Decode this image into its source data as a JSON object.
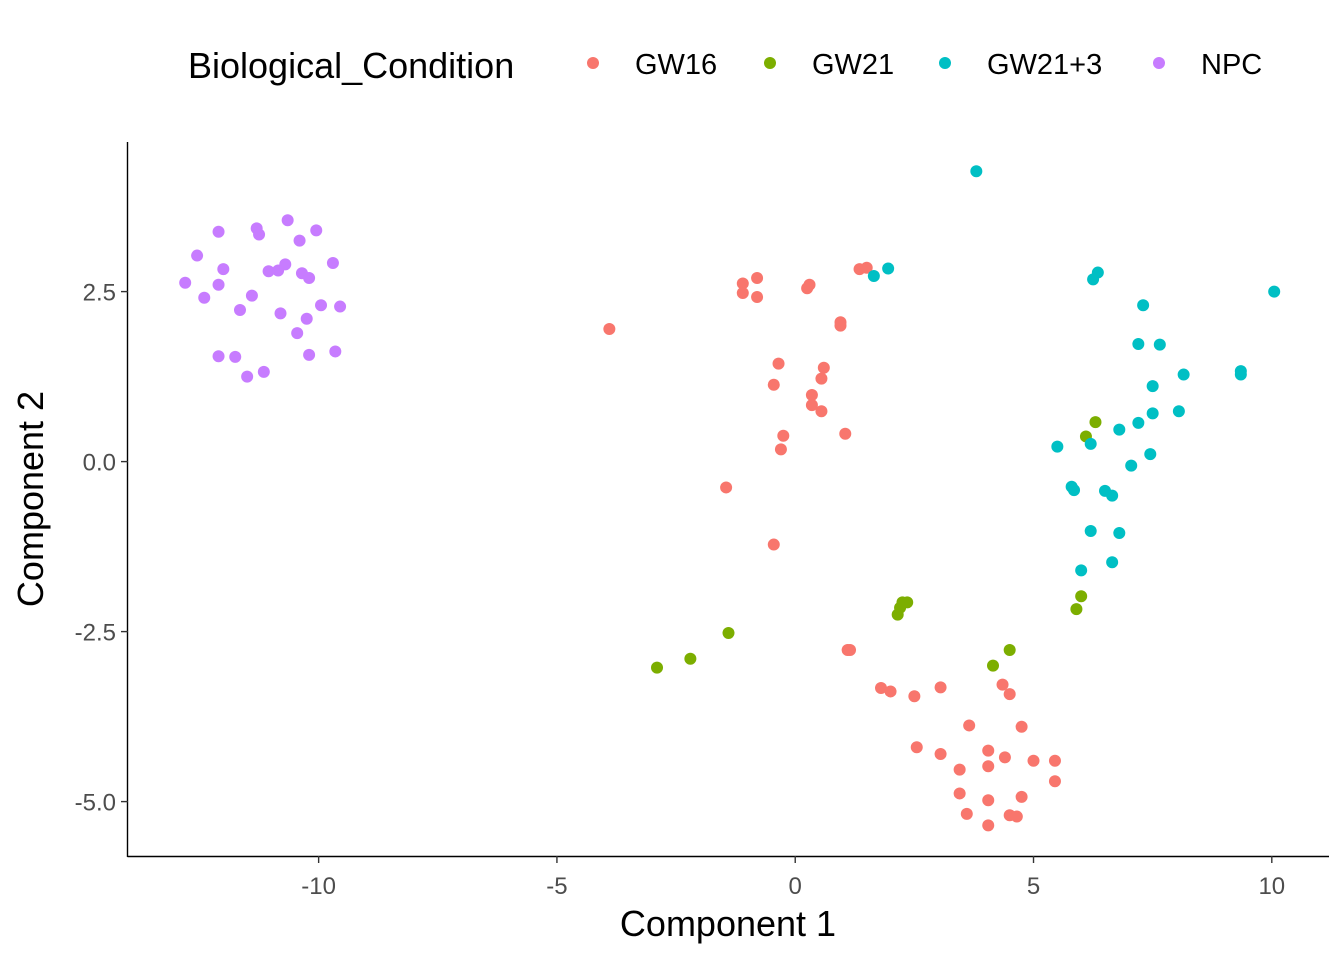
{
  "chart_data": {
    "type": "scatter",
    "title": "",
    "xlabel": "Component 1",
    "ylabel": "Component 2",
    "xlim": [
      -14.0,
      11.2
    ],
    "ylim": [
      -5.8,
      4.7
    ],
    "xticks": [
      -10,
      -5,
      0,
      5,
      10
    ],
    "xtick_labels": [
      "-10",
      "-5",
      "0",
      "5",
      "10"
    ],
    "yticks": [
      -5.0,
      -2.5,
      0.0,
      2.5
    ],
    "ytick_labels": [
      "-5.0",
      "-2.5",
      "0.0",
      "2.5"
    ],
    "grid": false,
    "legend": {
      "title": "Biological_Condition",
      "position": "top"
    },
    "series": [
      {
        "name": "GW16",
        "color": "#F8766D",
        "points": [
          [
            -3.9,
            1.95
          ],
          [
            -1.1,
            2.62
          ],
          [
            -1.1,
            2.48
          ],
          [
            -0.8,
            2.7
          ],
          [
            -0.8,
            2.42
          ],
          [
            0.25,
            2.55
          ],
          [
            0.3,
            2.6
          ],
          [
            1.35,
            2.83
          ],
          [
            1.5,
            2.85
          ],
          [
            0.95,
            2.05
          ],
          [
            0.95,
            2.0
          ],
          [
            -0.35,
            1.44
          ],
          [
            -0.45,
            1.13
          ],
          [
            0.6,
            1.38
          ],
          [
            0.55,
            1.22
          ],
          [
            0.35,
            0.98
          ],
          [
            0.35,
            0.83
          ],
          [
            0.55,
            0.74
          ],
          [
            -0.25,
            0.38
          ],
          [
            -0.3,
            0.18
          ],
          [
            1.05,
            0.41
          ],
          [
            -1.45,
            -0.38
          ],
          [
            -0.45,
            -1.22
          ],
          [
            1.1,
            -2.77
          ],
          [
            1.15,
            -2.77
          ],
          [
            1.8,
            -3.33
          ],
          [
            2.0,
            -3.38
          ],
          [
            2.5,
            -3.45
          ],
          [
            3.05,
            -3.32
          ],
          [
            4.35,
            -3.28
          ],
          [
            4.5,
            -3.42
          ],
          [
            3.65,
            -3.88
          ],
          [
            4.75,
            -3.9
          ],
          [
            2.55,
            -4.2
          ],
          [
            3.05,
            -4.3
          ],
          [
            4.05,
            -4.25
          ],
          [
            4.4,
            -4.35
          ],
          [
            5.0,
            -4.4
          ],
          [
            5.45,
            -4.4
          ],
          [
            3.45,
            -4.53
          ],
          [
            4.05,
            -4.48
          ],
          [
            5.45,
            -4.7
          ],
          [
            3.45,
            -4.88
          ],
          [
            4.05,
            -4.98
          ],
          [
            4.75,
            -4.93
          ],
          [
            3.6,
            -5.18
          ],
          [
            4.5,
            -5.2
          ],
          [
            4.65,
            -5.22
          ],
          [
            4.05,
            -5.35
          ]
        ]
      },
      {
        "name": "GW21",
        "color": "#7CAE00",
        "points": [
          [
            -2.9,
            -3.03
          ],
          [
            -2.2,
            -2.9
          ],
          [
            -1.4,
            -2.52
          ],
          [
            2.15,
            -2.25
          ],
          [
            2.2,
            -2.15
          ],
          [
            2.25,
            -2.07
          ],
          [
            2.35,
            -2.07
          ],
          [
            4.15,
            -3.0
          ],
          [
            4.5,
            -2.77
          ],
          [
            5.9,
            -2.17
          ],
          [
            6.0,
            -1.98
          ],
          [
            6.1,
            0.37
          ],
          [
            6.3,
            0.58
          ]
        ]
      },
      {
        "name": "GW21+3",
        "color": "#00BFC4",
        "points": [
          [
            3.8,
            4.27
          ],
          [
            1.65,
            2.73
          ],
          [
            1.95,
            2.84
          ],
          [
            6.25,
            2.68
          ],
          [
            6.35,
            2.78
          ],
          [
            10.05,
            2.5
          ],
          [
            7.3,
            2.3
          ],
          [
            7.2,
            1.73
          ],
          [
            7.65,
            1.72
          ],
          [
            8.15,
            1.28
          ],
          [
            9.35,
            1.28
          ],
          [
            9.35,
            1.33
          ],
          [
            7.5,
            1.11
          ],
          [
            8.05,
            0.74
          ],
          [
            7.5,
            0.71
          ],
          [
            7.2,
            0.57
          ],
          [
            6.8,
            0.47
          ],
          [
            6.2,
            0.26
          ],
          [
            5.5,
            0.22
          ],
          [
            7.45,
            0.11
          ],
          [
            7.05,
            -0.06
          ],
          [
            5.8,
            -0.37
          ],
          [
            5.85,
            -0.42
          ],
          [
            6.5,
            -0.43
          ],
          [
            6.65,
            -0.5
          ],
          [
            6.2,
            -1.02
          ],
          [
            6.8,
            -1.05
          ],
          [
            6.65,
            -1.48
          ],
          [
            6.0,
            -1.6
          ]
        ]
      },
      {
        "name": "NPC",
        "color": "#C77CFF",
        "points": [
          [
            -10.65,
            3.55
          ],
          [
            -11.3,
            3.43
          ],
          [
            -11.25,
            3.34
          ],
          [
            -12.1,
            3.38
          ],
          [
            -10.05,
            3.4
          ],
          [
            -10.4,
            3.25
          ],
          [
            -12.55,
            3.03
          ],
          [
            -10.7,
            2.9
          ],
          [
            -9.7,
            2.92
          ],
          [
            -11.05,
            2.8
          ],
          [
            -10.85,
            2.81
          ],
          [
            -12.0,
            2.83
          ],
          [
            -10.35,
            2.77
          ],
          [
            -10.2,
            2.7
          ],
          [
            -12.8,
            2.63
          ],
          [
            -12.1,
            2.6
          ],
          [
            -11.4,
            2.44
          ],
          [
            -12.4,
            2.41
          ],
          [
            -9.95,
            2.3
          ],
          [
            -9.55,
            2.28
          ],
          [
            -11.65,
            2.23
          ],
          [
            -10.8,
            2.18
          ],
          [
            -10.25,
            2.1
          ],
          [
            -10.45,
            1.89
          ],
          [
            -9.65,
            1.62
          ],
          [
            -10.2,
            1.57
          ],
          [
            -12.1,
            1.55
          ],
          [
            -11.75,
            1.54
          ],
          [
            -11.15,
            1.32
          ],
          [
            -11.5,
            1.25
          ]
        ]
      }
    ]
  }
}
